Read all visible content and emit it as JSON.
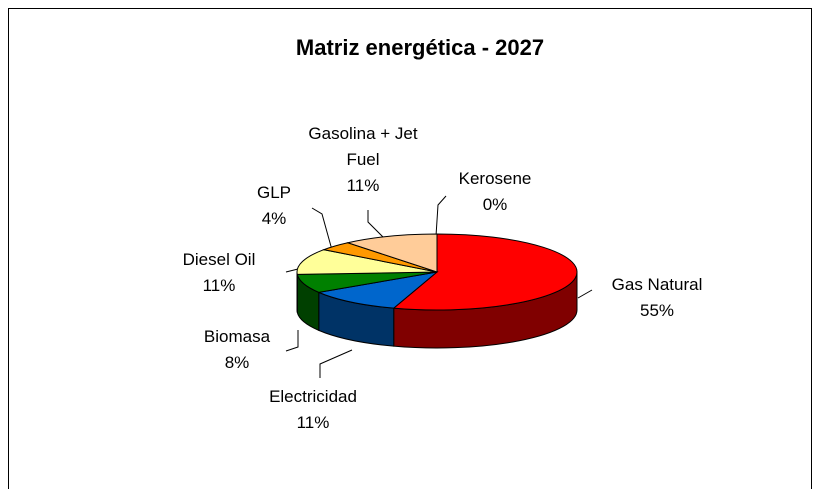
{
  "chart_data": {
    "type": "pie",
    "title": "Matriz energética - 2027",
    "categories": [
      "Gas Natural",
      "Electricidad",
      "Biomasa",
      "Diesel Oil",
      "GLP",
      "Gasolina + Jet Fuel",
      "Kerosene"
    ],
    "values": [
      55,
      11,
      8,
      11,
      4,
      11,
      0
    ],
    "value_labels": [
      "55%",
      "11%",
      "8%",
      "11%",
      "4%",
      "11%",
      "0%"
    ],
    "colors": [
      "#ff0000",
      "#0066cc",
      "#008000",
      "#ffff99",
      "#ff9900",
      "#ffcc99",
      "#ccffff"
    ]
  }
}
